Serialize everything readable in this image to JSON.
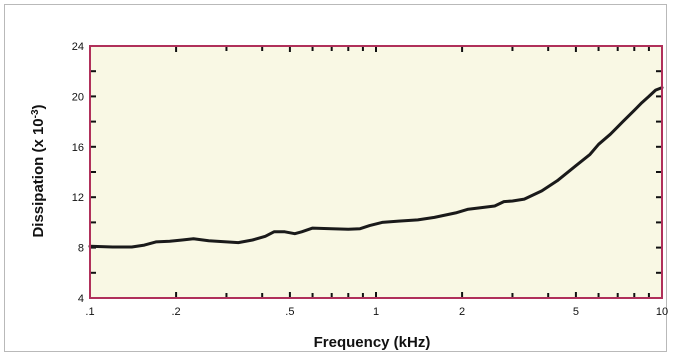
{
  "chart_data": {
    "type": "line",
    "xlabel": "Frequency (kHz)",
    "ylabel_main": "Dissipation (x 10",
    "ylabel_sup": "-3",
    "ylabel_close": ")",
    "x_scale": "log",
    "xlim": [
      0.1,
      10
    ],
    "ylim": [
      4,
      24
    ],
    "x_ticks": [
      0.1,
      0.2,
      0.5,
      1,
      2,
      5,
      10
    ],
    "x_tick_labels": [
      ".1",
      ".2",
      ".5",
      "1",
      "2",
      "5",
      "10"
    ],
    "y_ticks": [
      4,
      8,
      12,
      16,
      20,
      24
    ],
    "y_tick_labels": [
      "4",
      "8",
      "12",
      "16",
      "20",
      "24"
    ],
    "plot_background": "#f9f8e4",
    "plot_border_color": "#b0305a",
    "line_color": "#1a1a1a",
    "series": [
      {
        "x": [
          0.1,
          0.12,
          0.14,
          0.155,
          0.17,
          0.19,
          0.21,
          0.23,
          0.26,
          0.3,
          0.33,
          0.37,
          0.41,
          0.44,
          0.48,
          0.52,
          0.55,
          0.6,
          0.7,
          0.8,
          0.88,
          0.95,
          1.05,
          1.2,
          1.4,
          1.6,
          1.9,
          2.1,
          2.3,
          2.6,
          2.8,
          3.0,
          3.3,
          3.8,
          4.3,
          5.0,
          5.6,
          6.0,
          6.6,
          7.3,
          8.0,
          8.5,
          9.0,
          9.5,
          10.0
        ],
        "y": [
          8.1,
          8.05,
          8.05,
          8.2,
          8.45,
          8.5,
          8.6,
          8.7,
          8.55,
          8.45,
          8.4,
          8.6,
          8.9,
          9.25,
          9.25,
          9.1,
          9.25,
          9.55,
          9.5,
          9.45,
          9.5,
          9.75,
          10.0,
          10.1,
          10.2,
          10.4,
          10.75,
          11.05,
          11.15,
          11.3,
          11.65,
          11.7,
          11.85,
          12.5,
          13.3,
          14.5,
          15.4,
          16.2,
          17.0,
          18.0,
          18.9,
          19.5,
          20.0,
          20.5,
          20.7
        ]
      }
    ]
  }
}
